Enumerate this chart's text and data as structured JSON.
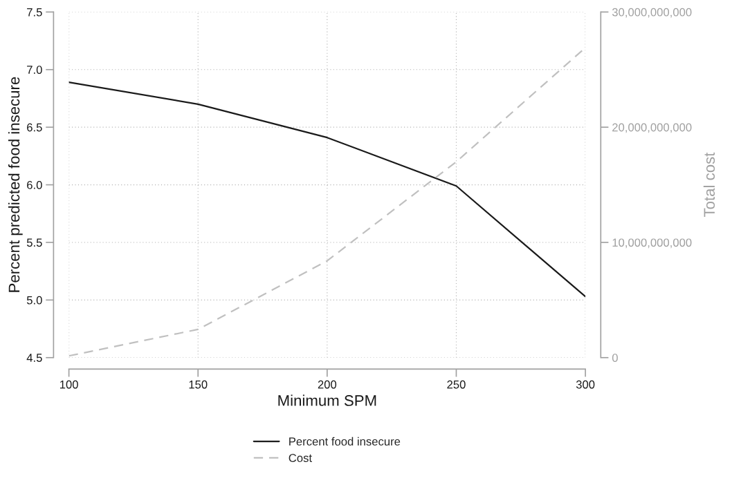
{
  "chart_data": {
    "type": "line",
    "x": [
      100,
      150,
      200,
      250,
      300
    ],
    "xlabel": "Minimum SPM",
    "ylabel": "Percent predicted food insecure",
    "y2label": "Total cost",
    "xlim": [
      100,
      300
    ],
    "xticks": [
      100,
      150,
      200,
      250,
      300
    ],
    "ylim": [
      4.5,
      7.5
    ],
    "yticks": [
      {
        "value": 4.5,
        "label": "4.5"
      },
      {
        "value": 5.0,
        "label": "5.0"
      },
      {
        "value": 5.5,
        "label": "5.5"
      },
      {
        "value": 6.0,
        "label": "6.0"
      },
      {
        "value": 6.5,
        "label": "6.5"
      },
      {
        "value": 7.0,
        "label": "7.0"
      },
      {
        "value": 7.5,
        "label": "7.5"
      }
    ],
    "y2lim": [
      0,
      30000000000
    ],
    "y2ticks": [
      {
        "value": 0,
        "label": "0"
      },
      {
        "value": 10000000000,
        "label": "10,000,000,000"
      },
      {
        "value": 20000000000,
        "label": "20,000,000,000"
      },
      {
        "value": 30000000000,
        "label": "30,000,000,000"
      }
    ],
    "grid": true,
    "legend": "bottom",
    "series": [
      {
        "name": "Percent food insecure",
        "color": "#1a1a1a",
        "values": [
          6.89,
          6.7,
          6.41,
          5.99,
          5.03
        ],
        "line_style": "solid"
      },
      {
        "name": "Cost",
        "color": "#c0c0c0",
        "values": [
          150000000,
          2450000000,
          8400000000,
          17000000000,
          26900000000
        ],
        "line_style": "dashed",
        "axis": "y2"
      }
    ]
  }
}
